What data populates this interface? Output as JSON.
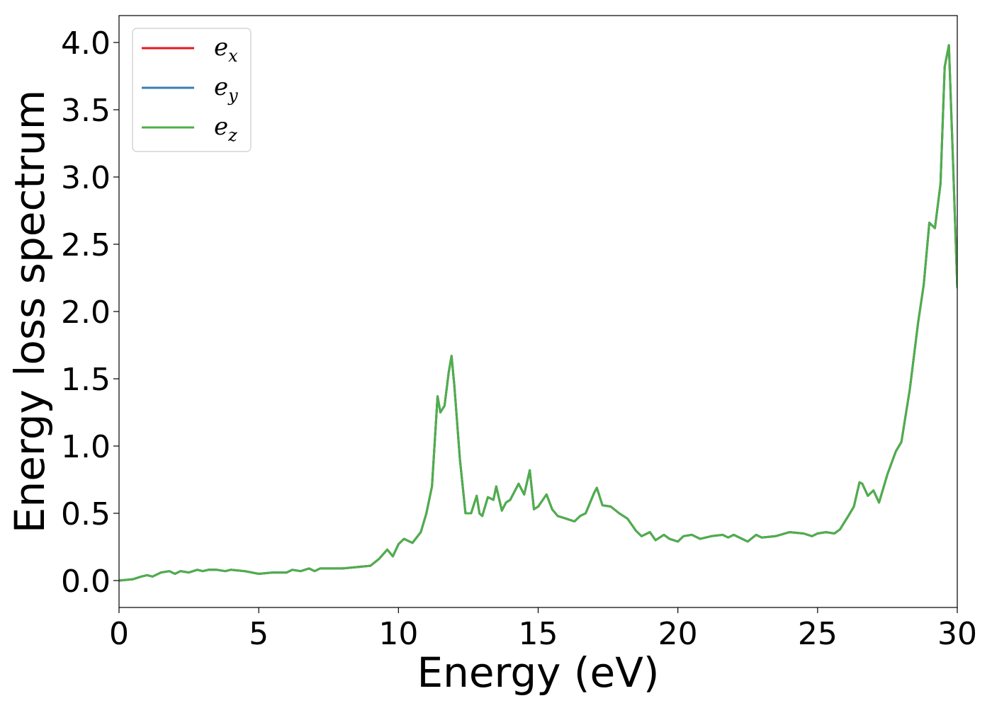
{
  "chart_data": {
    "type": "line",
    "title": "",
    "xlabel": "Energy (eV)",
    "ylabel": "Energy loss spectrum",
    "xlim": [
      0,
      30
    ],
    "ylim": [
      -0.2,
      4.2
    ],
    "xticks": [
      0,
      5,
      10,
      15,
      20,
      25,
      30
    ],
    "xtick_labels": [
      "0",
      "5",
      "10",
      "15",
      "20",
      "25",
      "30"
    ],
    "yticks": [
      0.0,
      0.5,
      1.0,
      1.5,
      2.0,
      2.5,
      3.0,
      3.5,
      4.0
    ],
    "ytick_labels": [
      "0.0",
      "0.5",
      "1.0",
      "1.5",
      "2.0",
      "2.5",
      "3.0",
      "3.5",
      "4.0"
    ],
    "grid": false,
    "legend_position": "top-left",
    "x": [
      0,
      0.5,
      0.8,
      1.0,
      1.2,
      1.5,
      1.8,
      2.0,
      2.2,
      2.5,
      2.8,
      3.0,
      3.2,
      3.5,
      3.8,
      4.0,
      4.5,
      5.0,
      5.5,
      6.0,
      6.2,
      6.5,
      6.8,
      7.0,
      7.2,
      7.5,
      8.0,
      8.5,
      9.0,
      9.3,
      9.6,
      9.8,
      10.0,
      10.2,
      10.5,
      10.8,
      11.0,
      11.2,
      11.4,
      11.5,
      11.65,
      11.8,
      11.9,
      12.0,
      12.2,
      12.4,
      12.6,
      12.8,
      12.9,
      13.0,
      13.2,
      13.4,
      13.5,
      13.7,
      13.85,
      14.0,
      14.3,
      14.5,
      14.7,
      14.85,
      15.0,
      15.3,
      15.5,
      15.7,
      16.0,
      16.3,
      16.5,
      16.7,
      17.0,
      17.1,
      17.3,
      17.6,
      17.9,
      18.2,
      18.5,
      18.7,
      19.0,
      19.2,
      19.5,
      19.7,
      20.0,
      20.2,
      20.5,
      20.8,
      21.2,
      21.6,
      21.8,
      22.0,
      22.3,
      22.5,
      22.8,
      23.0,
      23.5,
      24.0,
      24.5,
      24.8,
      25.0,
      25.3,
      25.6,
      25.8,
      26.1,
      26.3,
      26.5,
      26.6,
      26.8,
      27.0,
      27.2,
      27.5,
      27.8,
      28.0,
      28.3,
      28.6,
      28.8,
      29.0,
      29.2,
      29.4,
      29.55,
      29.7,
      29.85,
      30.0
    ],
    "series": [
      {
        "name": "e_x",
        "label_base": "e",
        "label_sub": "x",
        "color": "#e41a1c",
        "y": [
          0.0,
          0.01,
          0.03,
          0.04,
          0.03,
          0.06,
          0.07,
          0.05,
          0.07,
          0.06,
          0.08,
          0.07,
          0.08,
          0.08,
          0.07,
          0.08,
          0.07,
          0.05,
          0.06,
          0.06,
          0.08,
          0.07,
          0.09,
          0.07,
          0.09,
          0.09,
          0.09,
          0.1,
          0.11,
          0.16,
          0.23,
          0.18,
          0.27,
          0.31,
          0.28,
          0.36,
          0.5,
          0.7,
          1.37,
          1.25,
          1.3,
          1.55,
          1.67,
          1.45,
          0.9,
          0.5,
          0.5,
          0.63,
          0.5,
          0.48,
          0.62,
          0.6,
          0.7,
          0.52,
          0.58,
          0.6,
          0.72,
          0.64,
          0.82,
          0.53,
          0.55,
          0.64,
          0.53,
          0.48,
          0.46,
          0.44,
          0.48,
          0.5,
          0.65,
          0.69,
          0.56,
          0.55,
          0.5,
          0.46,
          0.37,
          0.33,
          0.36,
          0.3,
          0.34,
          0.31,
          0.29,
          0.33,
          0.34,
          0.31,
          0.33,
          0.34,
          0.32,
          0.34,
          0.31,
          0.29,
          0.34,
          0.32,
          0.33,
          0.36,
          0.35,
          0.33,
          0.35,
          0.36,
          0.35,
          0.38,
          0.48,
          0.55,
          0.73,
          0.72,
          0.63,
          0.67,
          0.58,
          0.79,
          0.96,
          1.03,
          1.42,
          1.92,
          2.2,
          2.66,
          2.62,
          2.95,
          3.82,
          3.98,
          3.1,
          2.18
        ]
      },
      {
        "name": "e_y",
        "label_base": "e",
        "label_sub": "y",
        "color": "#377eb8",
        "y": [
          0.0,
          0.01,
          0.03,
          0.04,
          0.03,
          0.06,
          0.07,
          0.05,
          0.07,
          0.06,
          0.08,
          0.07,
          0.08,
          0.08,
          0.07,
          0.08,
          0.07,
          0.05,
          0.06,
          0.06,
          0.08,
          0.07,
          0.09,
          0.07,
          0.09,
          0.09,
          0.09,
          0.1,
          0.11,
          0.16,
          0.23,
          0.18,
          0.27,
          0.31,
          0.28,
          0.36,
          0.5,
          0.7,
          1.37,
          1.25,
          1.3,
          1.55,
          1.67,
          1.45,
          0.9,
          0.5,
          0.5,
          0.63,
          0.5,
          0.48,
          0.62,
          0.6,
          0.7,
          0.52,
          0.58,
          0.6,
          0.72,
          0.64,
          0.82,
          0.53,
          0.55,
          0.64,
          0.53,
          0.48,
          0.46,
          0.44,
          0.48,
          0.5,
          0.65,
          0.69,
          0.56,
          0.55,
          0.5,
          0.46,
          0.37,
          0.33,
          0.36,
          0.3,
          0.34,
          0.31,
          0.29,
          0.33,
          0.34,
          0.31,
          0.33,
          0.34,
          0.32,
          0.34,
          0.31,
          0.29,
          0.34,
          0.32,
          0.33,
          0.36,
          0.35,
          0.33,
          0.35,
          0.36,
          0.35,
          0.38,
          0.48,
          0.55,
          0.73,
          0.72,
          0.63,
          0.67,
          0.58,
          0.79,
          0.96,
          1.03,
          1.42,
          1.92,
          2.2,
          2.66,
          2.62,
          2.95,
          3.82,
          3.98,
          3.1,
          2.18
        ]
      },
      {
        "name": "e_z",
        "label_base": "e",
        "label_sub": "z",
        "color": "#4daf4a",
        "y": [
          0.0,
          0.01,
          0.03,
          0.04,
          0.03,
          0.06,
          0.07,
          0.05,
          0.07,
          0.06,
          0.08,
          0.07,
          0.08,
          0.08,
          0.07,
          0.08,
          0.07,
          0.05,
          0.06,
          0.06,
          0.08,
          0.07,
          0.09,
          0.07,
          0.09,
          0.09,
          0.09,
          0.1,
          0.11,
          0.16,
          0.23,
          0.18,
          0.27,
          0.31,
          0.28,
          0.36,
          0.5,
          0.7,
          1.37,
          1.25,
          1.3,
          1.55,
          1.67,
          1.45,
          0.9,
          0.5,
          0.5,
          0.63,
          0.5,
          0.48,
          0.62,
          0.6,
          0.7,
          0.52,
          0.58,
          0.6,
          0.72,
          0.64,
          0.82,
          0.53,
          0.55,
          0.64,
          0.53,
          0.48,
          0.46,
          0.44,
          0.48,
          0.5,
          0.65,
          0.69,
          0.56,
          0.55,
          0.5,
          0.46,
          0.37,
          0.33,
          0.36,
          0.3,
          0.34,
          0.31,
          0.29,
          0.33,
          0.34,
          0.31,
          0.33,
          0.34,
          0.32,
          0.34,
          0.31,
          0.29,
          0.34,
          0.32,
          0.33,
          0.36,
          0.35,
          0.33,
          0.35,
          0.36,
          0.35,
          0.38,
          0.48,
          0.55,
          0.73,
          0.72,
          0.63,
          0.67,
          0.58,
          0.79,
          0.96,
          1.03,
          1.42,
          1.92,
          2.2,
          2.66,
          2.62,
          2.95,
          3.82,
          3.98,
          3.1,
          2.18
        ]
      }
    ]
  }
}
